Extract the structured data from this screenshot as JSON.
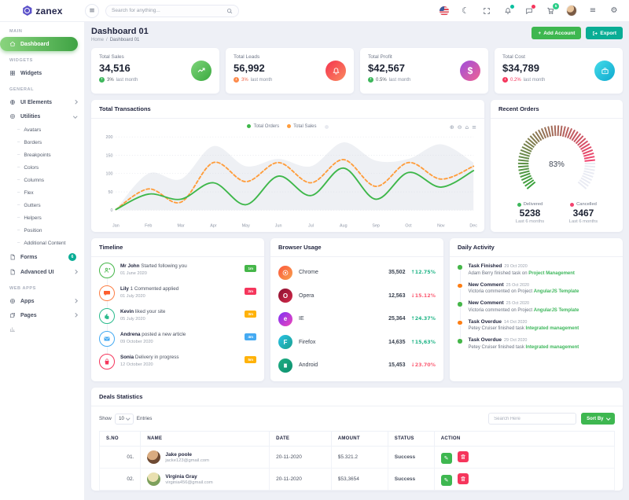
{
  "brand": {
    "name": "zanex"
  },
  "header": {
    "search_placeholder": "Search for anything...",
    "cart_badge": "5"
  },
  "sidebar": {
    "section_main": "MAIN",
    "section_widgets": "WIDGETS",
    "section_general": "GENERAL",
    "section_webapps": "WEB APPS",
    "dashboard": "Dashboard",
    "widgets": "Widgets",
    "ui_elements": "UI Elements",
    "utilities": "Utilities",
    "utilities_children": [
      "Avatars",
      "Borders",
      "Breakpoints",
      "Colors",
      "Columns",
      "Flex",
      "Gutters",
      "Helpers",
      "Position",
      "Additional Content"
    ],
    "forms": "Forms",
    "forms_badge": "6",
    "advanced_ui": "Advanced UI",
    "apps": "Apps",
    "pages": "Pages"
  },
  "page": {
    "title": "Dashboard 01",
    "breadcrumb_home": "Home",
    "breadcrumb_sep": "/",
    "breadcrumb_current": "Dashboard 01",
    "add_account": "Add Account",
    "add_plus": "+",
    "export": "Export"
  },
  "stats": [
    {
      "title": "Total Sales",
      "value": "34,516",
      "arrow": "↑",
      "delta": "3%",
      "suffix": "last month",
      "chip_color": "#3db75b",
      "pct_color": "#555d66"
    },
    {
      "title": "Total Leads",
      "value": "56,992",
      "arrow": "↓",
      "delta": "3%",
      "suffix": "last month",
      "chip_color": "#fd8a4b",
      "pct_color": "#f06548"
    },
    {
      "title": "Total Profit",
      "value": "$42,567",
      "arrow": "↑",
      "delta": "0.5%",
      "suffix": "last month",
      "chip_color": "#3db75b",
      "pct_color": "#555d66"
    },
    {
      "title": "Total Cost",
      "value": "$34,789",
      "arrow": "↓",
      "delta": "0.2%",
      "suffix": "last month",
      "chip_color": "#f5365c",
      "pct_color": "#f5365c"
    }
  ],
  "transactions": {
    "title": "Total Transactions"
  },
  "recent_orders": {
    "title": "Recent Orders",
    "delivered_label": "Delivered",
    "delivered_value": "5238",
    "delivered_period": "Last 6 months",
    "delivered_color": "#3db75b",
    "cancelled_label": "Cancelled",
    "cancelled_value": "3467",
    "cancelled_period": "Last 6 months",
    "cancelled_color": "#f2426e"
  },
  "timeline": {
    "title": "Timeline",
    "items": [
      {
        "name": "Mr John",
        "text": "Started following you",
        "date": "01 June 2020",
        "badge": "1m",
        "color": "#45b649"
      },
      {
        "name": "Lily",
        "text": "1 Commented applied",
        "date": "01 July 2020",
        "badge": "2m",
        "color": "#f5365c"
      },
      {
        "name": "Kevin",
        "text": "liked your site",
        "date": "05 July 2020",
        "badge": "3m",
        "color": "#2bbb8d"
      },
      {
        "name": "Andrena",
        "text": "posted a new article",
        "date": "09 October 2020",
        "badge": "4m",
        "color": "#45aaf2"
      },
      {
        "name": "Sonia",
        "text": "Delivery in progress",
        "date": "12 October 2020",
        "badge": "5m",
        "color": "#f5365c"
      }
    ],
    "badge_colors": [
      "#45b649",
      "#f5365c",
      "#ffb209",
      "#45aaf2",
      "#ffb209"
    ]
  },
  "browser_usage": {
    "title": "Browser Usage",
    "rows": [
      {
        "name": "Chrome",
        "value": "35,502",
        "change": "↑12.75%",
        "change_color": "#21b587"
      },
      {
        "name": "Opera",
        "value": "12,563",
        "change": "↓15.12%",
        "change_color": "#fb5b72"
      },
      {
        "name": "IE",
        "value": "25,364",
        "change": "↑24.37%",
        "change_color": "#21b587"
      },
      {
        "name": "Firefox",
        "value": "14,635",
        "change": "↑15,63%",
        "change_color": "#21b587"
      },
      {
        "name": "Android",
        "value": "15,453",
        "change": "↓23.70%",
        "change_color": "#fb5b72"
      }
    ],
    "icon_letters": {
      "opera": "O",
      "ie": "e",
      "firefox": "F"
    }
  },
  "daily_activity": {
    "title": "Daily Activity",
    "items": [
      {
        "title": "Task Finished",
        "date": "29 Oct 2020",
        "text": "Adam Berry finished task on",
        "link": "Project Management",
        "dot": "#45b649"
      },
      {
        "title": "New Comment",
        "date": "25 Oct 2020",
        "text": "Victoria commented on Project",
        "link": "AngularJS Template",
        "dot": "#fd7e14"
      },
      {
        "title": "New Comment",
        "date": "25 Oct 2020",
        "text": "Victoria commented on Project",
        "link": "AngularJS Template",
        "dot": "#45b649"
      },
      {
        "title": "Task Overdue",
        "date": "14 Oct 2020",
        "text": "Petey Cruiser finished task",
        "link": "Integrated management",
        "dot": "#fd7e14"
      },
      {
        "title": "Task Overdue",
        "date": "29 Oct 2020",
        "text": "Petey Cruiser finished task",
        "link": "Integrated management",
        "dot": "#45b649"
      }
    ]
  },
  "deals": {
    "title": "Deals Statistics",
    "show_label": "Show",
    "entries_value": "10",
    "entries_label": "Entries",
    "search_placeholder": "Search Here",
    "sort_label": "Sort By",
    "columns": [
      "S.NO",
      "NAME",
      "DATE",
      "AMOUNT",
      "STATUS",
      "ACTION"
    ],
    "rows": [
      {
        "sno": "01.",
        "name": "Jake poole",
        "email": "jacke123@gmail.com",
        "date": "20-11-2020",
        "amount": "$5.321.2",
        "status": "Success"
      },
      {
        "sno": "02.",
        "name": "Virginia Gray",
        "email": "virginia456@gmail.com",
        "date": "20-11-2020",
        "amount": "$53,3654",
        "status": "Success"
      }
    ]
  },
  "colors": {
    "primary_teal": "#09ad95",
    "green": "#3eb750",
    "success_text": "#0fb594",
    "danger": "#f5365c",
    "orange": "#fd7e14",
    "sidebar_active_gradient": [
      "#8ad47e",
      "#3fa344"
    ]
  },
  "chart_data": [
    {
      "type": "line",
      "title": "Total Transactions",
      "x": [
        "Jan",
        "Feb",
        "Mar",
        "Apr",
        "May",
        "Jun",
        "Jul",
        "Aug",
        "Sep",
        "Oct",
        "Nov",
        "Dec"
      ],
      "series": [
        {
          "name": "Total Orders",
          "kind": "line",
          "style": "solid",
          "color": "#3eb74a",
          "values": [
            2,
            44,
            30,
            75,
            15,
            93,
            40,
            115,
            30,
            103,
            63,
            108
          ]
        },
        {
          "name": "Total Sales",
          "kind": "line",
          "style": "dashed",
          "color": "#ff9d3c",
          "values": [
            2,
            58,
            22,
            130,
            78,
            130,
            75,
            138,
            65,
            130,
            85,
            120
          ]
        },
        {
          "name": "Background",
          "kind": "area",
          "color": "#eef0f4",
          "values": [
            2,
            100,
            85,
            175,
            120,
            140,
            120,
            185,
            135,
            140,
            180,
            130
          ]
        }
      ],
      "ylim": [
        0,
        200
      ],
      "yticks": [
        0,
        50,
        100,
        150,
        200
      ],
      "grid": "dotted",
      "legend_position": "top"
    },
    {
      "type": "radial-gauge",
      "title": "Recent Orders",
      "value_pct": 83,
      "label": "83%",
      "color_start": "#3aa23c",
      "color_end": "#f2426e",
      "track_color": "#e9ebf3",
      "start_angle": -130,
      "end_angle": 130,
      "ticks": 52
    }
  ]
}
